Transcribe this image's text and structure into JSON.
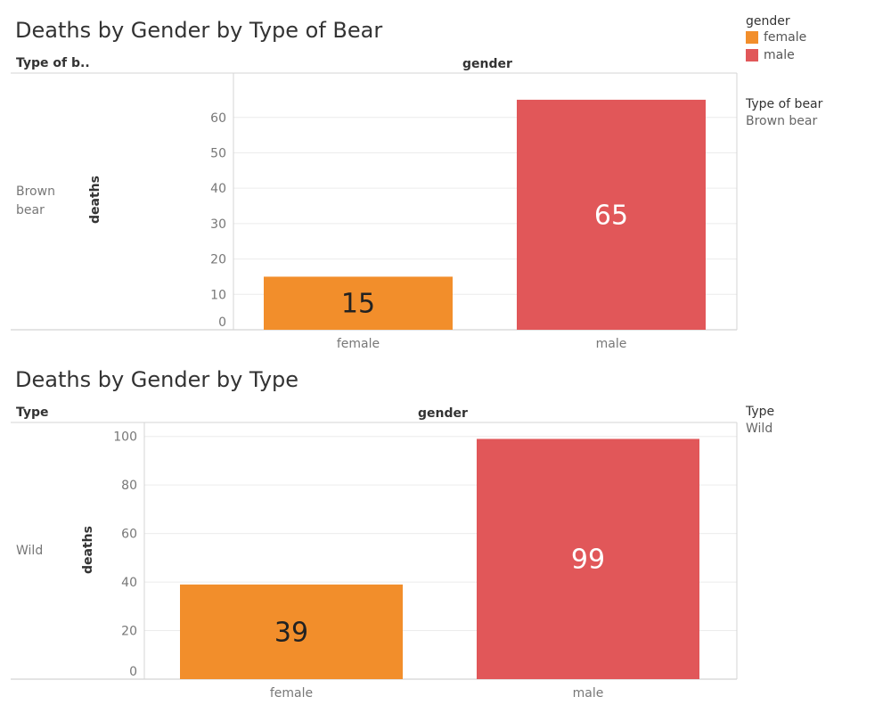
{
  "legend": {
    "title": "gender",
    "items": [
      {
        "label": "female",
        "color": "#f28e2b"
      },
      {
        "label": "male",
        "color": "#e15759"
      }
    ]
  },
  "charts": [
    {
      "row_header": "Type of b..",
      "row_label": "Brown bear",
      "filter": {
        "title": "Type of bear",
        "value": "Brown bear"
      }
    },
    {
      "row_header": "Type",
      "row_label": "Wild",
      "filter": {
        "title": "Type",
        "value": "Wild"
      }
    }
  ],
  "chart_data": [
    {
      "type": "bar",
      "title": "Deaths by Gender by Type of Bear",
      "column_header": "gender",
      "categories": [
        "female",
        "male"
      ],
      "values": [
        15,
        65
      ],
      "colors": [
        "#f28e2b",
        "#e15759"
      ],
      "ylabel": "deaths",
      "ylim": [
        0,
        68
      ],
      "yticks": [
        0,
        10,
        20,
        30,
        40,
        50,
        60
      ],
      "grid": true
    },
    {
      "type": "bar",
      "title": "Deaths by Gender by Type",
      "column_header": "gender",
      "categories": [
        "female",
        "male"
      ],
      "values": [
        39,
        99
      ],
      "colors": [
        "#f28e2b",
        "#e15759"
      ],
      "ylabel": "deaths",
      "ylim": [
        0,
        101
      ],
      "yticks": [
        0,
        20,
        40,
        60,
        80,
        100
      ],
      "grid": true
    }
  ]
}
